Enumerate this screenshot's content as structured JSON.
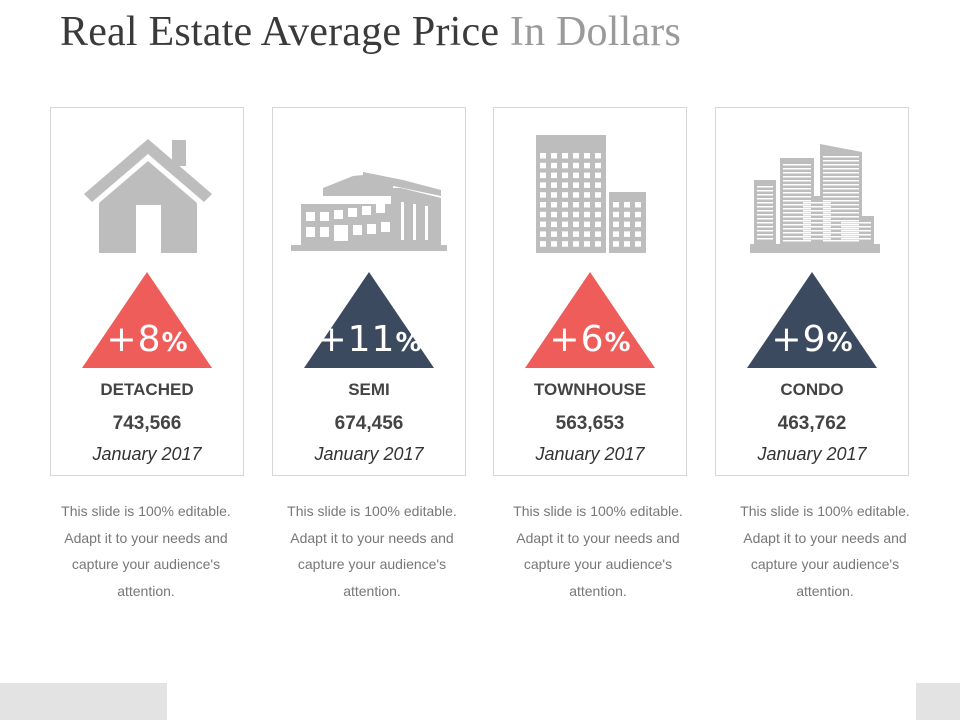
{
  "title": {
    "main": "Real Estate Average Price",
    "accent": "In Dollars"
  },
  "colors": {
    "coral": "#ef5d5a",
    "navy": "#3c4a60",
    "icon_gray": "#bdbdbd",
    "text": "#444444"
  },
  "cards": [
    {
      "icon": "house-icon",
      "change": "+8",
      "percent_sign": "%",
      "label": "DETACHED",
      "value": "743,566",
      "date": "January 2017",
      "triangle_color": "#ef5d5a",
      "description": "This slide is 100% editable. Adapt it to your needs and capture your audience's attention."
    },
    {
      "icon": "low-rise-building-icon",
      "change": "+11",
      "percent_sign": "%",
      "label": "SEMI",
      "value": "674,456",
      "date": "January 2017",
      "triangle_color": "#3c4a60",
      "description": "This slide is 100% editable. Adapt it to your needs and capture your audience's attention."
    },
    {
      "icon": "townhouse-building-icon",
      "change": "+6",
      "percent_sign": "%",
      "label": "TOWNHOUSE",
      "value": "563,653",
      "date": "January 2017",
      "triangle_color": "#ef5d5a",
      "description": "This slide is 100% editable. Adapt it to your needs and capture your audience's attention."
    },
    {
      "icon": "condo-towers-icon",
      "change": "+9",
      "percent_sign": "%",
      "label": "CONDO",
      "value": "463,762",
      "date": "January 2017",
      "triangle_color": "#3c4a60",
      "description": "This slide is 100% editable. Adapt it to your needs and capture your audience's attention."
    }
  ]
}
